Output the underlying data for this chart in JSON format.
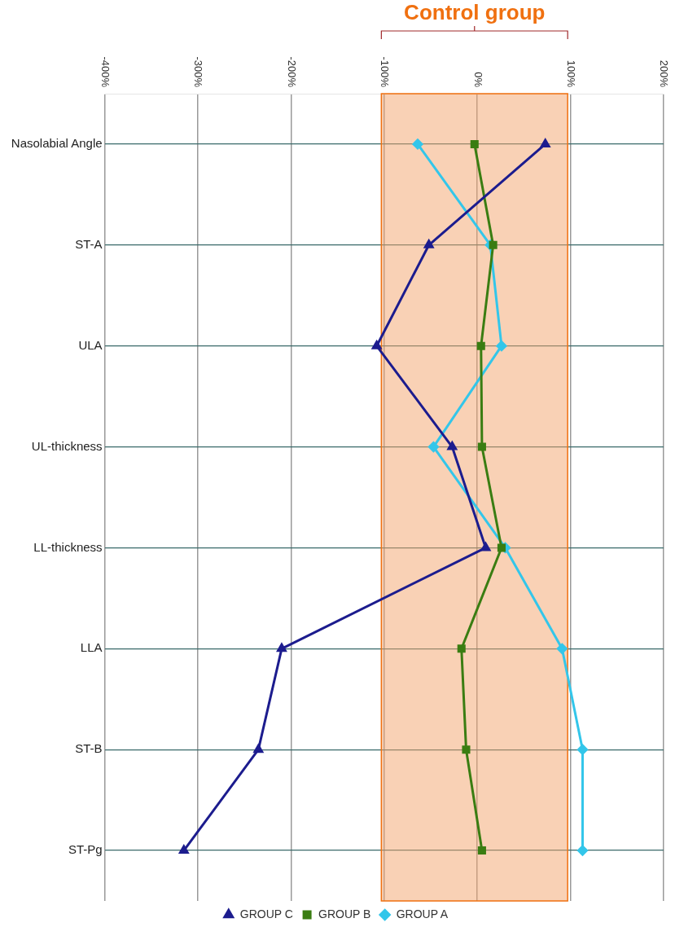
{
  "chart_data": {
    "type": "line",
    "orientation": "horizontal",
    "categories": [
      "Nasolabial Angle",
      "ST-A",
      "ULA",
      "UL-thickness",
      "LL-thickness",
      "LLA",
      "ST-B",
      "ST-Pg"
    ],
    "series": [
      {
        "name": "GROUP A",
        "color": "#33c6ea",
        "marker": "diamond",
        "values": [
          -64,
          14,
          26,
          -47,
          30,
          91,
          113,
          113
        ]
      },
      {
        "name": "GROUP B",
        "color": "#3a7d12",
        "marker": "square",
        "values": [
          -3,
          17,
          4,
          5,
          26,
          -17,
          -12,
          5
        ]
      },
      {
        "name": "GROUP C",
        "color": "#1c1c8e",
        "marker": "triangle",
        "values": [
          73,
          -52,
          -108,
          -27,
          9,
          -210,
          -235,
          -315
        ]
      }
    ],
    "xlim": [
      -400,
      200
    ],
    "xticks": [
      {
        "value": -400,
        "label": "-400%"
      },
      {
        "value": -300,
        "label": "-300%"
      },
      {
        "value": -200,
        "label": "-200%"
      },
      {
        "value": -100,
        "label": "-100%"
      },
      {
        "value": 0,
        "label": "0%"
      },
      {
        "value": 100,
        "label": "100%"
      },
      {
        "value": 200,
        "label": "200%"
      }
    ],
    "bands": [
      {
        "axis": "x",
        "from": -103,
        "to": 97,
        "color": "#f4a36b"
      }
    ],
    "annotations": [
      "Control group"
    ],
    "grid": true,
    "legend": "bottom",
    "line_style": "solid"
  }
}
